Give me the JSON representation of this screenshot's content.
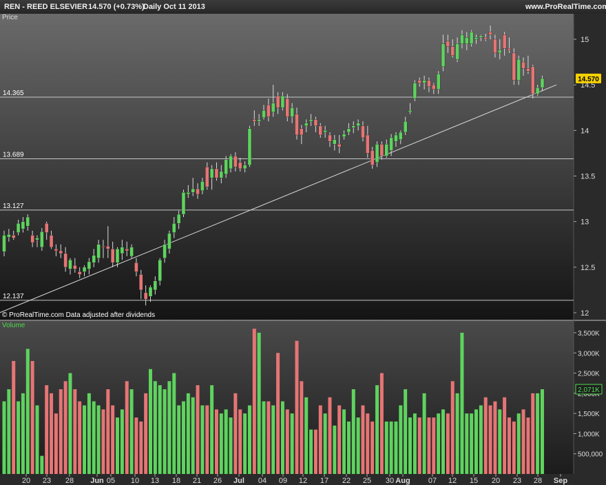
{
  "header": {
    "title": "REN - REED ELSEVIER",
    "price_change": "14.570 (+0.73%)",
    "period_date": "Daily  Oct 11 2013",
    "website": "www.ProRealTime.com"
  },
  "price_panel": {
    "label": "Price",
    "footnote": "© ProRealTime.com  Data adjusted after dividends",
    "current_price": "14.570",
    "current_price_bg": "#f5d000"
  },
  "volume_panel": {
    "label": "Volume",
    "current_volume": "2,071K",
    "label_color": "#4fdc4f"
  },
  "colors": {
    "up": "#5fd35f",
    "down": "#e67575",
    "line": "#d8d8d8"
  },
  "chart_data": [
    {
      "type": "candlestick",
      "title": "REN - REED ELSEVIER",
      "ylabel": "Price",
      "ylim": [
        11.95,
        15.55
      ],
      "y_ticks": [
        12,
        12.5,
        13,
        13.5,
        14,
        14.5,
        15
      ],
      "y_tick_labels": [
        "12",
        "12.5",
        "13",
        "13.5",
        "14",
        "14.5",
        "15"
      ],
      "x_tick_labels": [
        "20",
        "23",
        "28",
        "Jun",
        "05",
        "10",
        "13",
        "18",
        "21",
        "26",
        "Jul",
        "04",
        "09",
        "12",
        "17",
        "22",
        "25",
        "30",
        "Aug",
        "07",
        "12",
        "15",
        "20",
        "23",
        "28",
        "Sep"
      ],
      "horizontal_lines": [
        {
          "label": "14.365",
          "value": 14.365
        },
        {
          "label": "13.689",
          "value": 13.689
        },
        {
          "label": "13.127",
          "value": 13.127
        },
        {
          "label": "12.137",
          "value": 12.137
        }
      ],
      "trendline": {
        "from": {
          "bar": -1,
          "value": 12.0
        },
        "to": {
          "bar": 117,
          "value": 14.5
        }
      },
      "candles": [
        {
          "o": 12.67,
          "h": 12.9,
          "l": 12.62,
          "c": 12.85
        },
        {
          "o": 12.83,
          "h": 12.92,
          "l": 12.78,
          "c": 12.86
        },
        {
          "o": 12.85,
          "h": 12.9,
          "l": 12.8,
          "c": 12.82
        },
        {
          "o": 12.88,
          "h": 13.02,
          "l": 12.85,
          "c": 12.98
        },
        {
          "o": 12.92,
          "h": 13.05,
          "l": 12.88,
          "c": 13.0
        },
        {
          "o": 12.95,
          "h": 13.08,
          "l": 12.9,
          "c": 13.05
        },
        {
          "o": 12.85,
          "h": 12.9,
          "l": 12.72,
          "c": 12.77
        },
        {
          "o": 12.8,
          "h": 12.85,
          "l": 12.72,
          "c": 12.82
        },
        {
          "o": 12.72,
          "h": 12.93,
          "l": 12.68,
          "c": 12.89
        },
        {
          "o": 12.98,
          "h": 13.0,
          "l": 12.8,
          "c": 12.88
        },
        {
          "o": 12.85,
          "h": 12.9,
          "l": 12.7,
          "c": 12.72
        },
        {
          "o": 12.7,
          "h": 12.75,
          "l": 12.62,
          "c": 12.68
        },
        {
          "o": 12.68,
          "h": 12.75,
          "l": 12.6,
          "c": 12.65
        },
        {
          "o": 12.65,
          "h": 12.72,
          "l": 12.45,
          "c": 12.5
        },
        {
          "o": 12.48,
          "h": 12.6,
          "l": 12.42,
          "c": 12.58
        },
        {
          "o": 12.52,
          "h": 12.6,
          "l": 12.44,
          "c": 12.48
        },
        {
          "o": 12.45,
          "h": 12.5,
          "l": 12.38,
          "c": 12.42
        },
        {
          "o": 12.45,
          "h": 12.52,
          "l": 12.4,
          "c": 12.5
        },
        {
          "o": 12.48,
          "h": 12.6,
          "l": 12.42,
          "c": 12.56
        },
        {
          "o": 12.55,
          "h": 12.7,
          "l": 12.5,
          "c": 12.63
        },
        {
          "o": 12.6,
          "h": 12.8,
          "l": 12.55,
          "c": 12.75
        },
        {
          "o": 12.73,
          "h": 12.8,
          "l": 12.6,
          "c": 12.72
        },
        {
          "o": 12.73,
          "h": 12.95,
          "l": 12.6,
          "c": 12.7
        },
        {
          "o": 12.7,
          "h": 12.78,
          "l": 12.5,
          "c": 12.55
        },
        {
          "o": 12.55,
          "h": 12.72,
          "l": 12.5,
          "c": 12.7
        },
        {
          "o": 12.65,
          "h": 12.8,
          "l": 12.58,
          "c": 12.72
        },
        {
          "o": 12.7,
          "h": 12.78,
          "l": 12.62,
          "c": 12.68
        },
        {
          "o": 12.62,
          "h": 12.75,
          "l": 12.6,
          "c": 12.72
        },
        {
          "o": 12.55,
          "h": 12.6,
          "l": 12.4,
          "c": 12.45
        },
        {
          "o": 12.42,
          "h": 12.47,
          "l": 12.15,
          "c": 12.25
        },
        {
          "o": 12.22,
          "h": 12.3,
          "l": 12.08,
          "c": 12.15
        },
        {
          "o": 12.18,
          "h": 12.3,
          "l": 12.12,
          "c": 12.28
        },
        {
          "o": 12.25,
          "h": 12.4,
          "l": 12.2,
          "c": 12.35
        },
        {
          "o": 12.35,
          "h": 12.6,
          "l": 12.3,
          "c": 12.58
        },
        {
          "o": 12.6,
          "h": 12.8,
          "l": 12.55,
          "c": 12.75
        },
        {
          "o": 12.7,
          "h": 12.9,
          "l": 12.65,
          "c": 12.87
        },
        {
          "o": 12.88,
          "h": 13.05,
          "l": 12.82,
          "c": 12.98
        },
        {
          "o": 12.98,
          "h": 13.12,
          "l": 12.92,
          "c": 13.08
        },
        {
          "o": 13.08,
          "h": 13.35,
          "l": 13.05,
          "c": 13.32
        },
        {
          "o": 13.3,
          "h": 13.4,
          "l": 13.26,
          "c": 13.32
        },
        {
          "o": 13.32,
          "h": 13.48,
          "l": 13.28,
          "c": 13.36
        },
        {
          "o": 13.36,
          "h": 13.42,
          "l": 13.25,
          "c": 13.3
        },
        {
          "o": 13.34,
          "h": 13.48,
          "l": 13.3,
          "c": 13.44
        },
        {
          "o": 13.6,
          "h": 13.65,
          "l": 13.35,
          "c": 13.38
        },
        {
          "o": 13.48,
          "h": 13.62,
          "l": 13.35,
          "c": 13.58
        },
        {
          "o": 13.58,
          "h": 13.65,
          "l": 13.45,
          "c": 13.48
        },
        {
          "o": 13.48,
          "h": 13.62,
          "l": 13.42,
          "c": 13.55
        },
        {
          "o": 13.52,
          "h": 13.72,
          "l": 13.48,
          "c": 13.68
        },
        {
          "o": 13.58,
          "h": 13.74,
          "l": 13.54,
          "c": 13.72
        },
        {
          "o": 13.72,
          "h": 13.76,
          "l": 13.55,
          "c": 13.6
        },
        {
          "o": 13.65,
          "h": 13.7,
          "l": 13.55,
          "c": 13.58
        },
        {
          "o": 13.58,
          "h": 13.66,
          "l": 13.54,
          "c": 13.62
        },
        {
          "o": 13.62,
          "h": 14.05,
          "l": 13.6,
          "c": 14.02
        },
        {
          "o": 14.12,
          "h": 14.22,
          "l": 14.05,
          "c": 14.1
        },
        {
          "o": 14.1,
          "h": 14.18,
          "l": 14.05,
          "c": 14.12
        },
        {
          "o": 14.14,
          "h": 14.28,
          "l": 14.12,
          "c": 14.22
        },
        {
          "o": 14.28,
          "h": 14.35,
          "l": 14.1,
          "c": 14.15
        },
        {
          "o": 14.2,
          "h": 14.5,
          "l": 14.15,
          "c": 14.3
        },
        {
          "o": 14.38,
          "h": 14.42,
          "l": 14.18,
          "c": 14.25
        },
        {
          "o": 14.25,
          "h": 14.42,
          "l": 14.22,
          "c": 14.38
        },
        {
          "o": 14.35,
          "h": 14.4,
          "l": 14.1,
          "c": 14.15
        },
        {
          "o": 14.15,
          "h": 14.3,
          "l": 14.08,
          "c": 14.25
        },
        {
          "o": 14.18,
          "h": 14.25,
          "l": 13.9,
          "c": 13.95
        },
        {
          "o": 14.02,
          "h": 14.06,
          "l": 13.85,
          "c": 13.95
        },
        {
          "o": 14.05,
          "h": 14.12,
          "l": 13.98,
          "c": 14.08
        },
        {
          "o": 14.1,
          "h": 14.18,
          "l": 14.05,
          "c": 14.12
        },
        {
          "o": 14.12,
          "h": 14.15,
          "l": 13.98,
          "c": 14.05
        },
        {
          "o": 14.05,
          "h": 14.08,
          "l": 13.92,
          "c": 13.95
        },
        {
          "o": 13.98,
          "h": 14.05,
          "l": 13.92,
          "c": 14.0
        },
        {
          "o": 13.95,
          "h": 13.98,
          "l": 13.82,
          "c": 13.88
        },
        {
          "o": 13.85,
          "h": 13.95,
          "l": 13.78,
          "c": 13.9
        },
        {
          "o": 13.85,
          "h": 13.95,
          "l": 13.75,
          "c": 13.82
        },
        {
          "o": 13.93,
          "h": 14.0,
          "l": 13.9,
          "c": 13.96
        },
        {
          "o": 13.98,
          "h": 14.08,
          "l": 13.95,
          "c": 14.02
        },
        {
          "o": 14.03,
          "h": 14.1,
          "l": 13.97,
          "c": 14.05
        },
        {
          "o": 14.05,
          "h": 14.12,
          "l": 14.0,
          "c": 14.08
        },
        {
          "o": 14.05,
          "h": 14.1,
          "l": 13.88,
          "c": 13.92
        },
        {
          "o": 13.95,
          "h": 14.05,
          "l": 13.7,
          "c": 13.75
        },
        {
          "o": 13.78,
          "h": 13.82,
          "l": 13.58,
          "c": 13.62
        },
        {
          "o": 13.65,
          "h": 13.88,
          "l": 13.6,
          "c": 13.85
        },
        {
          "o": 13.85,
          "h": 13.88,
          "l": 13.68,
          "c": 13.72
        },
        {
          "o": 13.72,
          "h": 13.9,
          "l": 13.7,
          "c": 13.85
        },
        {
          "o": 13.78,
          "h": 13.96,
          "l": 13.72,
          "c": 13.92
        },
        {
          "o": 13.88,
          "h": 13.98,
          "l": 13.82,
          "c": 13.95
        },
        {
          "o": 13.9,
          "h": 14.0,
          "l": 13.85,
          "c": 13.98
        },
        {
          "o": 13.98,
          "h": 14.15,
          "l": 13.95,
          "c": 14.1
        },
        {
          "o": 14.2,
          "h": 14.3,
          "l": 14.18,
          "c": 14.22
        },
        {
          "o": 14.35,
          "h": 14.55,
          "l": 14.32,
          "c": 14.52
        },
        {
          "o": 14.55,
          "h": 14.58,
          "l": 14.48,
          "c": 14.52
        },
        {
          "o": 14.52,
          "h": 14.6,
          "l": 14.45,
          "c": 14.55
        },
        {
          "o": 14.55,
          "h": 14.58,
          "l": 14.42,
          "c": 14.48
        },
        {
          "o": 14.5,
          "h": 14.52,
          "l": 14.4,
          "c": 14.45
        },
        {
          "o": 14.45,
          "h": 14.65,
          "l": 14.4,
          "c": 14.62
        },
        {
          "o": 14.7,
          "h": 15.05,
          "l": 14.65,
          "c": 14.95
        },
        {
          "o": 14.98,
          "h": 15.05,
          "l": 14.85,
          "c": 14.92
        },
        {
          "o": 14.92,
          "h": 15.0,
          "l": 14.8,
          "c": 14.82
        },
        {
          "o": 14.78,
          "h": 15.02,
          "l": 14.75,
          "c": 14.95
        },
        {
          "o": 14.95,
          "h": 15.1,
          "l": 14.9,
          "c": 15.05
        },
        {
          "o": 14.95,
          "h": 15.08,
          "l": 14.88,
          "c": 15.02
        },
        {
          "o": 14.95,
          "h": 15.1,
          "l": 14.92,
          "c": 15.08
        },
        {
          "o": 15.0,
          "h": 15.05,
          "l": 14.95,
          "c": 15.02
        },
        {
          "o": 15.02,
          "h": 15.05,
          "l": 14.98,
          "c": 15.04
        },
        {
          "o": 15.02,
          "h": 15.06,
          "l": 14.98,
          "c": 15.0
        },
        {
          "o": 15.08,
          "h": 15.15,
          "l": 15.0,
          "c": 15.05
        },
        {
          "o": 15.0,
          "h": 15.05,
          "l": 14.8,
          "c": 14.85
        },
        {
          "o": 14.85,
          "h": 15.0,
          "l": 14.78,
          "c": 14.88
        },
        {
          "o": 15.05,
          "h": 15.08,
          "l": 14.82,
          "c": 14.9
        },
        {
          "o": 14.9,
          "h": 15.02,
          "l": 14.85,
          "c": 14.88
        },
        {
          "o": 14.85,
          "h": 14.9,
          "l": 14.5,
          "c": 14.55
        },
        {
          "o": 14.55,
          "h": 14.82,
          "l": 14.5,
          "c": 14.78
        },
        {
          "o": 14.75,
          "h": 14.8,
          "l": 14.6,
          "c": 14.68
        },
        {
          "o": 14.68,
          "h": 14.82,
          "l": 14.62,
          "c": 14.65
        },
        {
          "o": 14.7,
          "h": 14.72,
          "l": 14.35,
          "c": 14.4
        },
        {
          "o": 14.4,
          "h": 14.5,
          "l": 14.38,
          "c": 14.47
        },
        {
          "o": 14.47,
          "h": 14.6,
          "l": 14.43,
          "c": 14.57
        }
      ]
    },
    {
      "type": "bar",
      "title": "Volume",
      "ylim": [
        0,
        3900000
      ],
      "y_ticks": [
        500000,
        1000000,
        1500000,
        2000000,
        2500000,
        3000000,
        3500000
      ],
      "y_tick_labels": [
        "500,000",
        "1,000K",
        "1,500K",
        "2,000K",
        "2,500K",
        "3,000K",
        "3,500K"
      ],
      "volumes": [
        1800000,
        2100000,
        2800000,
        1800000,
        2000000,
        3100000,
        2800000,
        1700000,
        450000,
        2200000,
        2000000,
        1500000,
        2100000,
        2300000,
        2500000,
        2100000,
        1800000,
        1700000,
        2000000,
        1800000,
        1700000,
        1600000,
        2100000,
        1700000,
        1400000,
        1600000,
        2300000,
        2100000,
        1400000,
        1300000,
        2000000,
        2600000,
        2300000,
        2200000,
        2100000,
        2300000,
        2500000,
        1700000,
        1800000,
        2000000,
        1900000,
        2200000,
        1700000,
        1700000,
        2200000,
        1600000,
        1500000,
        1600000,
        1400000,
        2000000,
        1600000,
        1500000,
        1700000,
        3600000,
        3500000,
        1800000,
        1800000,
        1700000,
        3000000,
        1800000,
        1600000,
        1500000,
        3300000,
        2300000,
        1900000,
        1100000,
        1100000,
        1700000,
        1500000,
        1900000,
        1200000,
        1700000,
        1600000,
        1300000,
        2100000,
        1400000,
        1700000,
        1500000,
        1300000,
        2200000,
        2500000,
        1300000,
        1300000,
        1300000,
        1700000,
        2100000,
        1400000,
        1500000,
        1400000,
        2000000,
        1400000,
        1400000,
        1500000,
        1600000,
        1500000,
        2300000,
        2000000,
        3500000,
        1500000,
        1500000,
        1600000,
        1700000,
        1900000,
        1700000,
        1800000,
        1600000,
        1900000,
        1400000,
        1300000,
        1500000,
        1600000,
        1400000,
        2000000,
        2000000,
        2100000
      ]
    }
  ]
}
